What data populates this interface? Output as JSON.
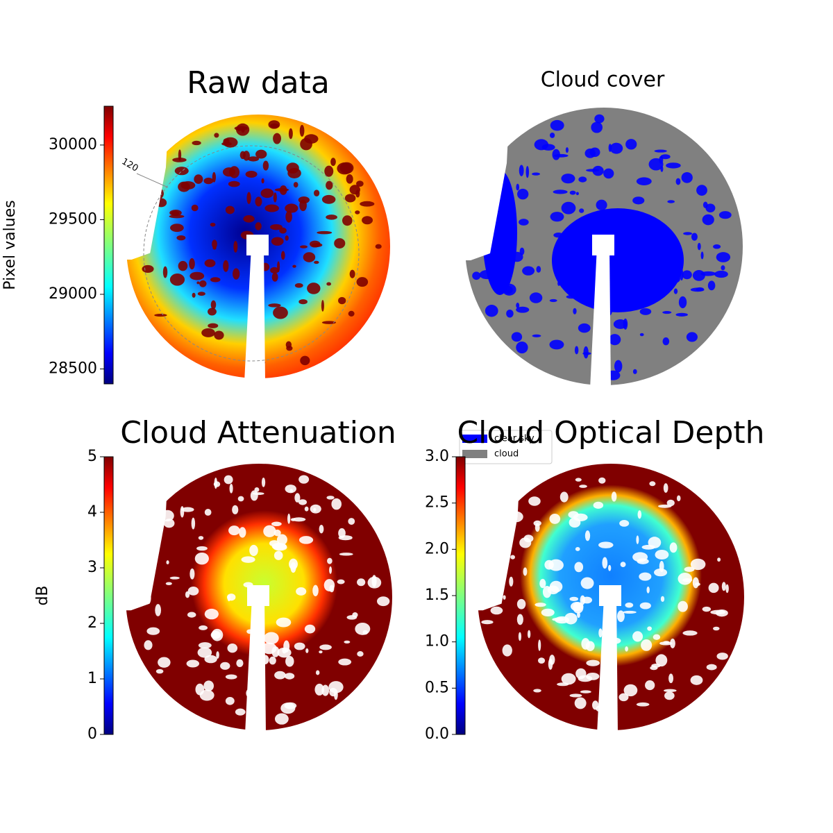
{
  "chart_data": [
    {
      "type": "image",
      "title": "Raw data",
      "colorbar_label": "Pixel values",
      "annotation": "120",
      "colormap": "jet",
      "clim": [
        28400,
        30260
      ],
      "ticks": [
        28500,
        29000,
        29500,
        30000
      ]
    },
    {
      "type": "mask",
      "title": "Cloud cover",
      "series": [
        {
          "name": "clear sky",
          "color": "#0000ff"
        },
        {
          "name": "cloud",
          "color": "#808080"
        }
      ]
    },
    {
      "type": "image",
      "title": "Cloud Attenuation",
      "colorbar_label": "dB",
      "colormap": "jet",
      "clim": [
        0,
        5
      ],
      "ticks": [
        0,
        1,
        2,
        3,
        4,
        5
      ]
    },
    {
      "type": "image",
      "title": "Cloud Optical Depth",
      "colormap": "jet",
      "clim": [
        0,
        3
      ],
      "ticks": [
        {
          "value": 0,
          "label": "0.0"
        },
        {
          "value": 0.5,
          "label": "0.5"
        },
        {
          "value": 1,
          "label": "1.0"
        },
        {
          "value": 1.5,
          "label": "1.5"
        },
        {
          "value": 2,
          "label": "2.0"
        },
        {
          "value": 2.5,
          "label": "2.5"
        },
        {
          "value": 3,
          "label": "3.0"
        }
      ]
    }
  ]
}
